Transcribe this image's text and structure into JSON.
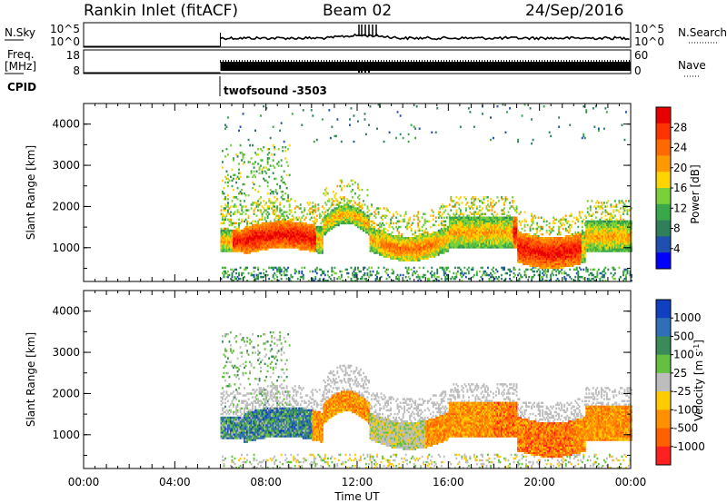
{
  "header": {
    "station": "Rankin Inlet (fitACF)",
    "beam": "Beam 02",
    "date": "24/Sep/2016"
  },
  "strip": {
    "nsky_label": "N.Sky",
    "nsky_ticks": [
      "10^5",
      "10^0"
    ],
    "nsearch_label": "N.Search",
    "nsearch_ticks": [
      "10^5",
      "10^0"
    ],
    "freq_label": "Freq.",
    "freq_unit": "[MHz]",
    "freq_ticks": [
      "18",
      "8"
    ],
    "nave_label": "Nave",
    "nave_ticks": [
      "60",
      "0"
    ],
    "cpid_label": "CPID",
    "cpid_value": "twofsound -3503"
  },
  "colors": {
    "power_scale": [
      "#0000ff",
      "#1f4faf",
      "#2f7f5a",
      "#3aa84a",
      "#7ad03a",
      "#ffd400",
      "#ff9900",
      "#ff6a00",
      "#ff3300",
      "#e80000"
    ],
    "velocity_scale": [
      "#1040c0",
      "#2f6fb8",
      "#3a8a5a",
      "#66c040",
      "#bdbdbd",
      "#ffcc00",
      "#ff9000",
      "#ff6000",
      "#ff2020"
    ]
  },
  "chart_data": [
    {
      "type": "heatmap",
      "name": "power",
      "ylabel": "Slant Range [km]",
      "ylim": [
        180,
        4500
      ],
      "yticks": [
        "1000",
        "2000",
        "3000",
        "4000"
      ],
      "xlabel": "",
      "xlim": [
        0,
        24
      ],
      "colorbar_label": "Power [dB]",
      "colorbar_ticks": [
        "4",
        "8",
        "12",
        "16",
        "20",
        "24",
        "28"
      ],
      "colorbar_range": [
        0,
        32
      ],
      "data_start_hour": 6.0,
      "features": [
        {
          "band": "main echo",
          "start_ut": 6.0,
          "end_ut": 24.0,
          "range_km": [
            700,
            1500
          ],
          "peak_db": 28
        }
      ]
    },
    {
      "type": "heatmap",
      "name": "velocity",
      "ylabel": "Slant Range [km]",
      "ylim": [
        180,
        4500
      ],
      "yticks": [
        "1000",
        "2000",
        "3000",
        "4000"
      ],
      "xlabel": "Time UT",
      "xlim": [
        0,
        24
      ],
      "xticks": [
        "00:00",
        "04:00",
        "08:00",
        "12:00",
        "16:00",
        "20:00",
        "00:00"
      ],
      "colorbar_label": "Velocity [m s",
      "colorbar_label_sup": "-1",
      "colorbar_label_end": "]",
      "colorbar_ticks": [
        "1000",
        "500",
        "100",
        "25",
        "-25",
        "-100",
        "-500",
        "-1000"
      ],
      "data_start_hour": 6.0
    }
  ]
}
